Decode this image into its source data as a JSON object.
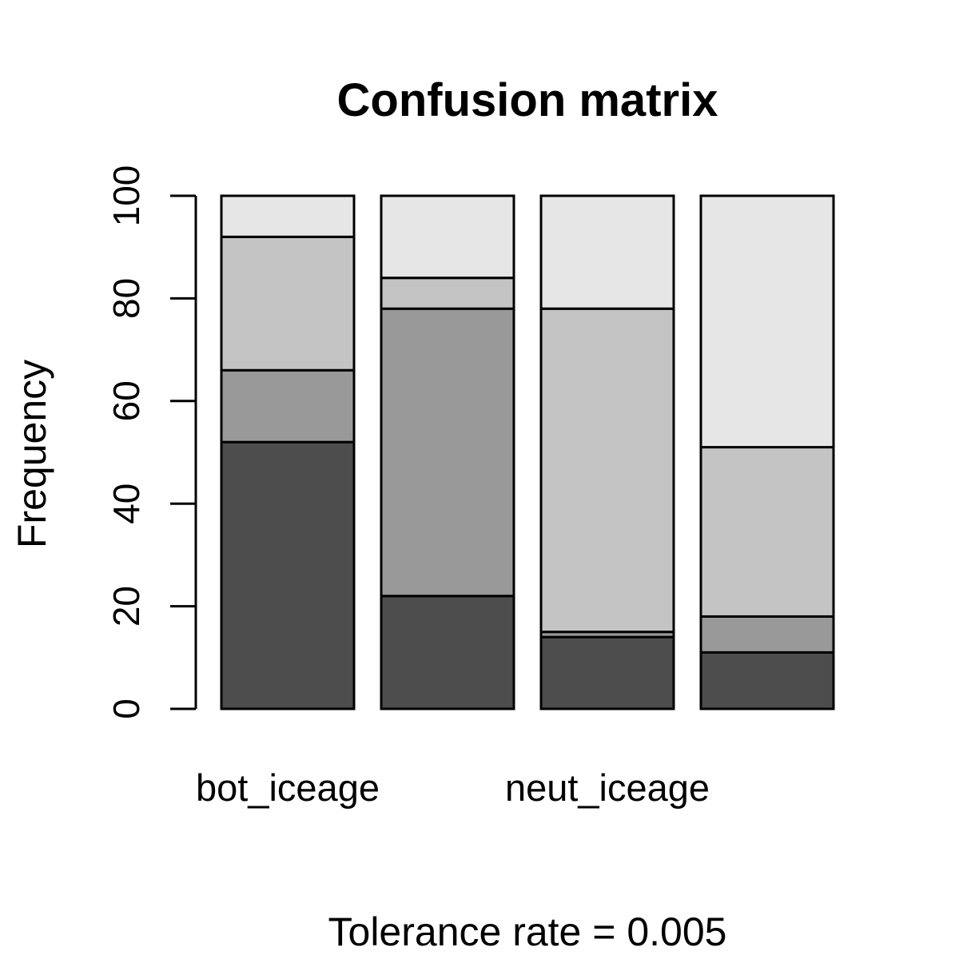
{
  "chart_data": {
    "type": "bar",
    "stacked": true,
    "title": "Confusion matrix",
    "ylabel": "Frequency",
    "xlabel": "Tolerance rate = 0.005",
    "ylim": [
      0,
      100
    ],
    "yticks": [
      0,
      20,
      40,
      60,
      80,
      100
    ],
    "categories": [
      "bot_iceage",
      "",
      "neut_iceage",
      ""
    ],
    "series": [
      {
        "color": "#4d4d4d",
        "values": [
          52,
          22,
          14,
          11
        ]
      },
      {
        "color": "#999999",
        "values": [
          14,
          56,
          1,
          7
        ]
      },
      {
        "color": "#c4c4c4",
        "values": [
          26,
          6,
          63,
          33
        ]
      },
      {
        "color": "#e6e6e6",
        "values": [
          8,
          16,
          22,
          49
        ]
      }
    ],
    "legend": "none",
    "grid": false
  }
}
